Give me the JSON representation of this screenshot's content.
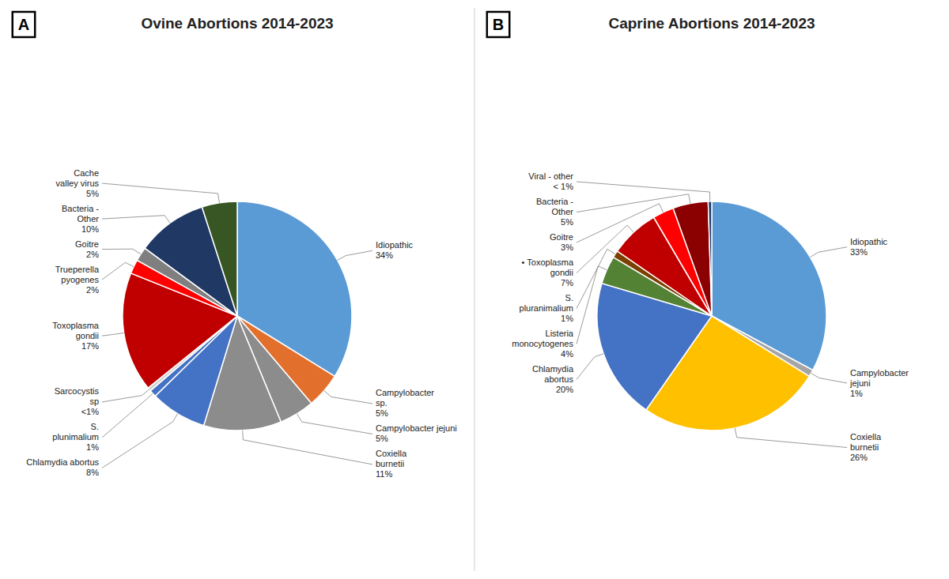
{
  "chart_data": [
    {
      "type": "pie",
      "title": "Ovine Abortions 2014-2023",
      "annotations": [
        "A"
      ],
      "categories": [
        "Idiopathic",
        "Campylobacter\nsp.",
        "Campylobacter jejuni",
        "Coxiella\nburnetii",
        "Chlamydia abortus",
        "S.\nplunimalium",
        "Sarcocystis\nsp",
        "Toxoplasma\ngondii",
        "Trueperella\npyogenes",
        "Goitre",
        "Bacteria -\nOther",
        "Cache\nvalley virus"
      ],
      "values": [
        34,
        5,
        5,
        11,
        8,
        1,
        0.5,
        17,
        2,
        2,
        10,
        5
      ],
      "value_labels": [
        "34%",
        "5%",
        "5%",
        "11%",
        "8%",
        "1%",
        "<1%",
        "17%",
        "2%",
        "2%",
        "10%",
        "5%"
      ],
      "colors": [
        "#5B9BD5",
        "#E36F2D",
        "#8C8C8C",
        "#8C8C8C",
        "#4472C4",
        "#4472C4",
        "#D0D0D0",
        "#C00000",
        "#FF0000",
        "#7F7F7F",
        "#1F3864",
        "#375623"
      ],
      "data_labels": true
    },
    {
      "type": "pie",
      "title": "Caprine Abortions 2014-2023",
      "annotations": [
        "B"
      ],
      "categories": [
        "Idiopathic",
        "Campylobacter\njejuni",
        "Coxiella\nburnetii",
        "Chlamydia\nabortus",
        "Listeria\nmonocytogenes",
        "S.\npluranimalium",
        "• Toxoplasma\ngondii",
        "Goitre",
        "Bacteria -\nOther",
        "Viral - other"
      ],
      "values": [
        33,
        1,
        26,
        20,
        4,
        1,
        7,
        3,
        5,
        0.5
      ],
      "value_labels": [
        "33%",
        "1%",
        "26%",
        "20%",
        "4%",
        "1%",
        "7%",
        "3%",
        "5%",
        "< 1%"
      ],
      "colors": [
        "#5B9BD5",
        "#A5A5A5",
        "#FFC000",
        "#4472C4",
        "#548235",
        "#7B3F00",
        "#C00000",
        "#FF0000",
        "#8B0000",
        "#1F3864"
      ],
      "data_labels": true
    }
  ]
}
